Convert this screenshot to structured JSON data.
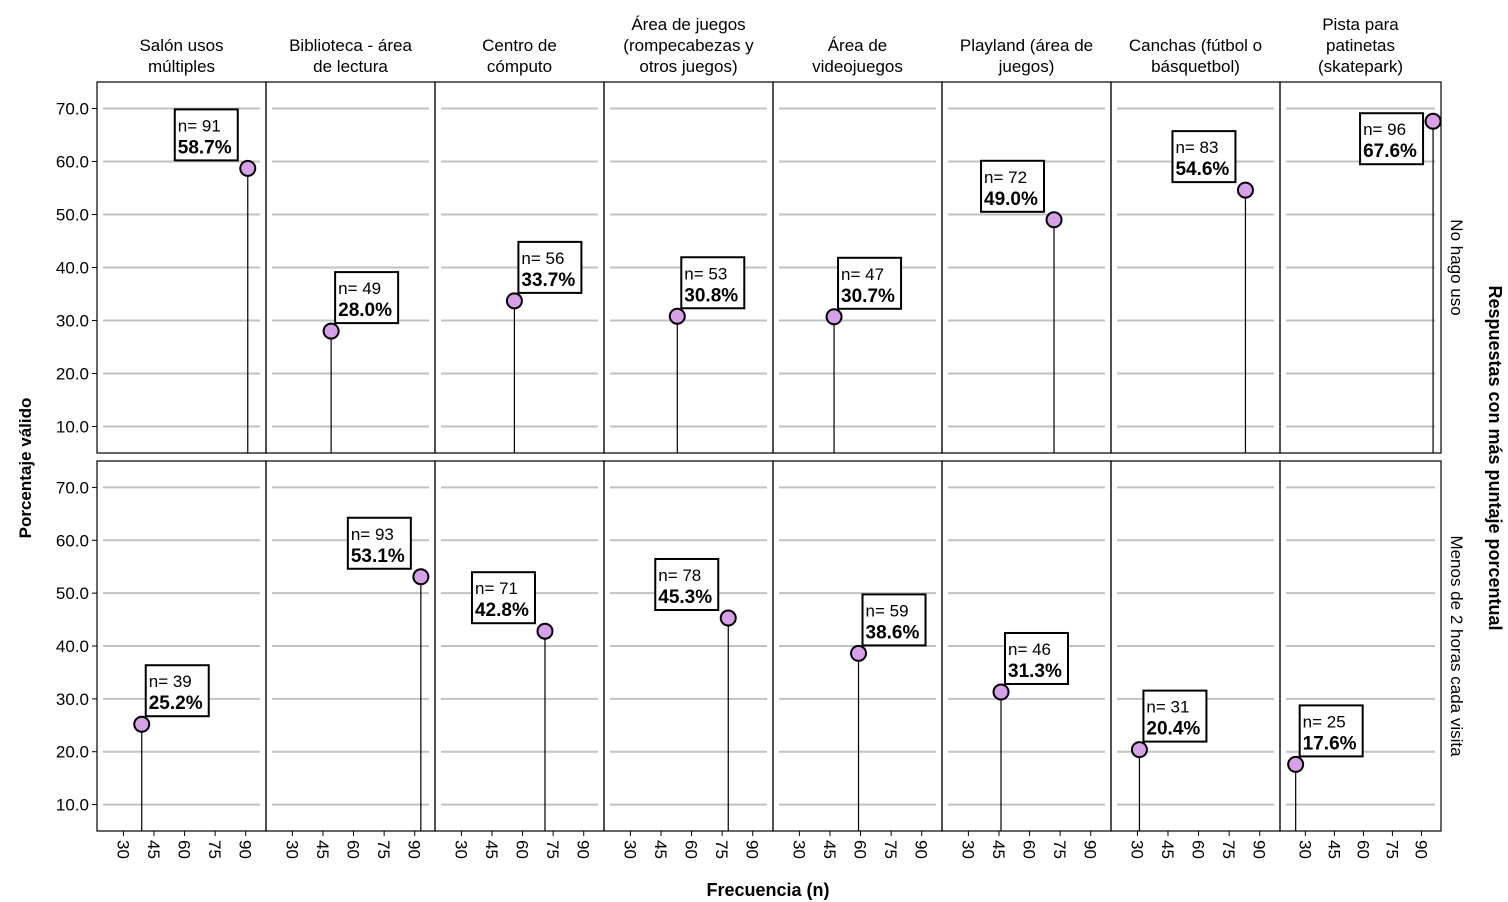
{
  "chart_data": {
    "type": "scatter",
    "title": "",
    "xlabel": "Frecuencia (n)",
    "ylabel": "Porcentaje válido",
    "row_group_label": "Respuestas con más puntaje porcentual",
    "ylim": [
      5,
      75
    ],
    "xlim": [
      20,
      97
    ],
    "yticks": [
      "10.0",
      "20.0",
      "30.0",
      "40.0",
      "50.0",
      "60.0",
      "70.0"
    ],
    "xticks": [
      "30",
      "45",
      "60",
      "75",
      "90"
    ],
    "grid": true,
    "marker_color": "#d8a0e8",
    "columns": [
      "Salón usos\nmúltiples",
      "Biblioteca - área\nde lectura",
      "Centro de\ncómputo",
      "Área de juegos\n(rompecabezas y\notros juegos)",
      "Área de\nvideojuegos",
      "Playland (área de\njuegos)",
      "Canchas (fútbol o\nbásquetbol)",
      "Pista para\npatinetas\n(skatepark)"
    ],
    "rows": [
      {
        "name": "No hago uso",
        "points": [
          {
            "n": 91,
            "pct": 58.7,
            "n_label": "n= 91",
            "pct_label": "58.7%"
          },
          {
            "n": 49,
            "pct": 28.0,
            "n_label": "n= 49",
            "pct_label": "28.0%"
          },
          {
            "n": 56,
            "pct": 33.7,
            "n_label": "n= 56",
            "pct_label": "33.7%"
          },
          {
            "n": 53,
            "pct": 30.8,
            "n_label": "n= 53",
            "pct_label": "30.8%"
          },
          {
            "n": 47,
            "pct": 30.7,
            "n_label": "n= 47",
            "pct_label": "30.7%"
          },
          {
            "n": 72,
            "pct": 49.0,
            "n_label": "n= 72",
            "pct_label": "49.0%"
          },
          {
            "n": 83,
            "pct": 54.6,
            "n_label": "n= 83",
            "pct_label": "54.6%"
          },
          {
            "n": 96,
            "pct": 67.6,
            "n_label": "n= 96",
            "pct_label": "67.6%"
          }
        ]
      },
      {
        "name": "Menos de 2 horas cada visita",
        "points": [
          {
            "n": 39,
            "pct": 25.2,
            "n_label": "n= 39",
            "pct_label": "25.2%"
          },
          {
            "n": 93,
            "pct": 53.1,
            "n_label": "n= 93",
            "pct_label": "53.1%"
          },
          {
            "n": 71,
            "pct": 42.8,
            "n_label": "n= 71",
            "pct_label": "42.8%"
          },
          {
            "n": 78,
            "pct": 45.3,
            "n_label": "n= 78",
            "pct_label": "45.3%"
          },
          {
            "n": 59,
            "pct": 38.6,
            "n_label": "n= 59",
            "pct_label": "38.6%"
          },
          {
            "n": 46,
            "pct": 31.3,
            "n_label": "n= 46",
            "pct_label": "31.3%"
          },
          {
            "n": 31,
            "pct": 20.4,
            "n_label": "n= 31",
            "pct_label": "20.4%"
          },
          {
            "n": 25,
            "pct": 17.6,
            "n_label": "n= 25",
            "pct_label": "17.6%"
          }
        ]
      }
    ]
  }
}
